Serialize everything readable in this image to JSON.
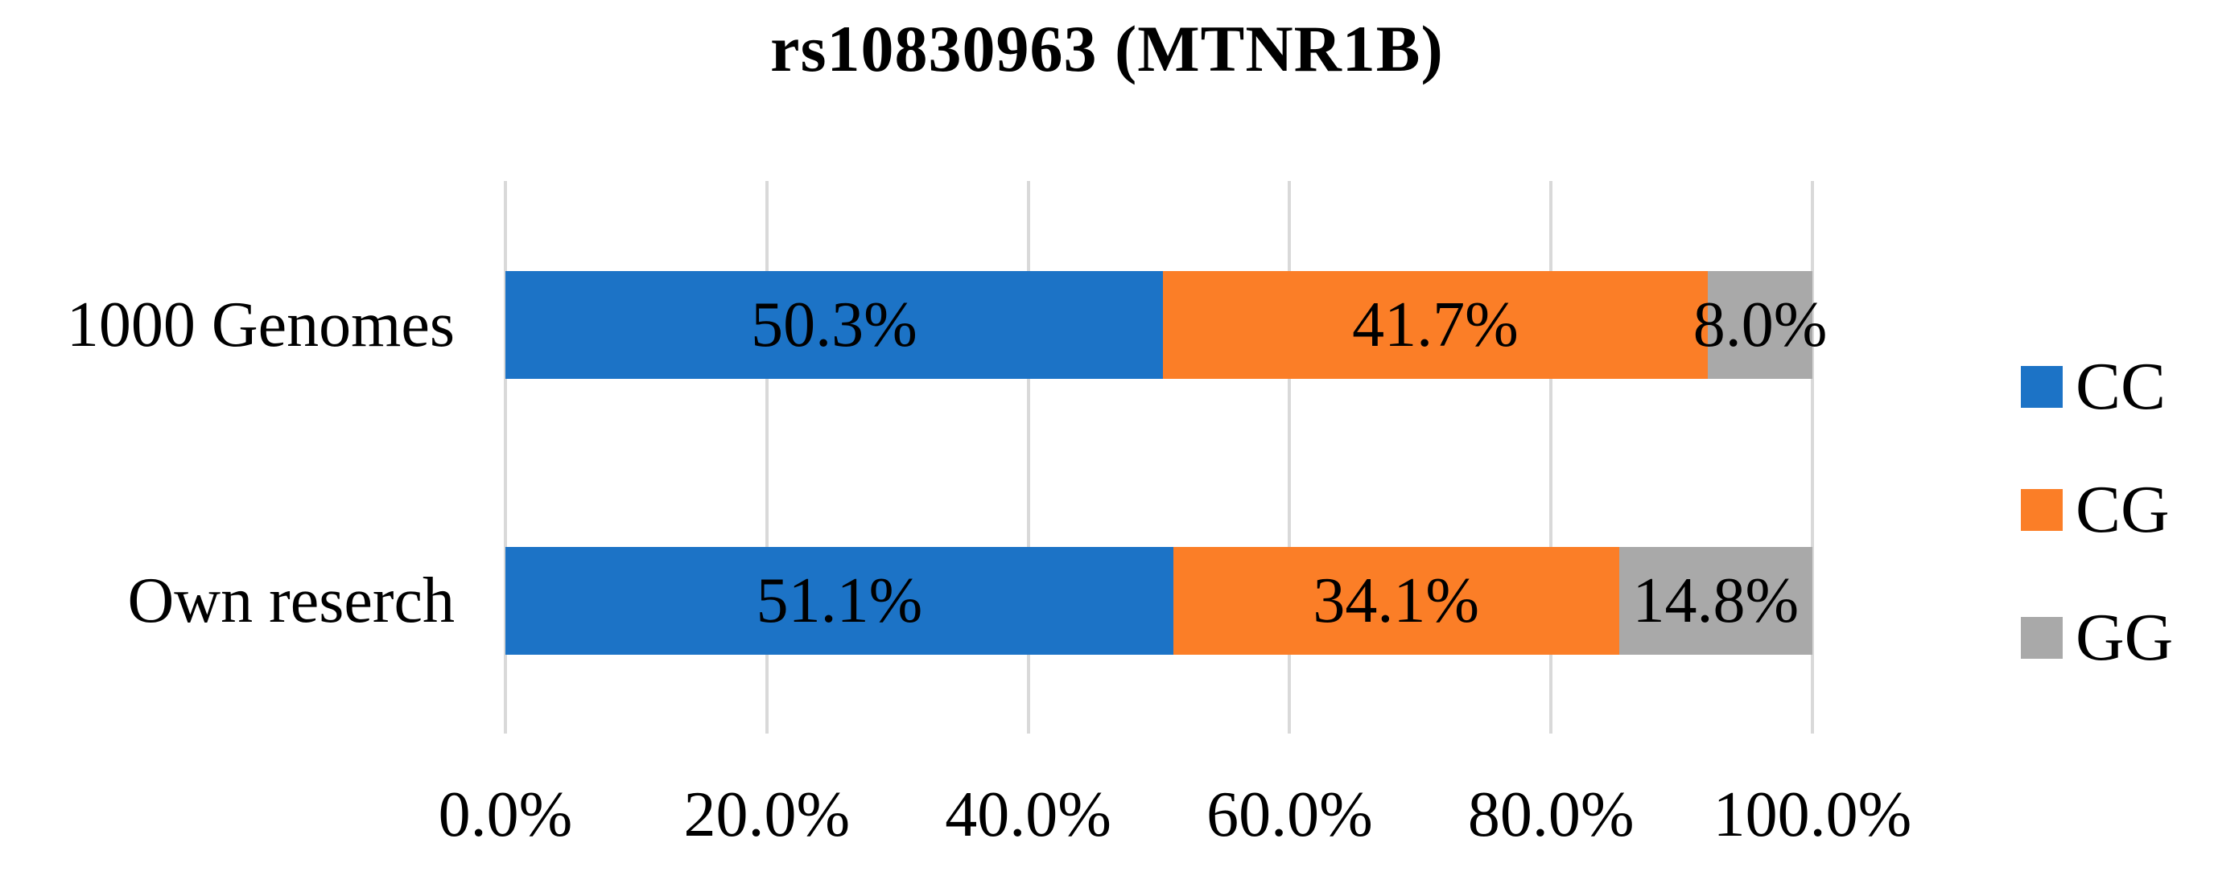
{
  "title": "rs10830963 (MTNR1B)",
  "chart_data": {
    "type": "bar",
    "orientation": "horizontal",
    "stacked": true,
    "title": "rs10830963 (MTNR1B)",
    "categories": [
      "1000 Genomes",
      "Own reserch"
    ],
    "series": [
      {
        "name": "CC",
        "color": "#1C73C6",
        "values": [
          50.3,
          51.1
        ]
      },
      {
        "name": "CG",
        "color": "#FB7E27",
        "values": [
          41.7,
          34.1
        ]
      },
      {
        "name": "GG",
        "color": "#A9A9A9",
        "values": [
          8.0,
          14.8
        ]
      }
    ],
    "data_labels": [
      [
        "50.3%",
        "41.7%",
        "8.0%"
      ],
      [
        "51.1%",
        "34.1%",
        "14.8%"
      ]
    ],
    "x_ticks": [
      "0.0%",
      "20.0%",
      "40.0%",
      "60.0%",
      "80.0%",
      "100.0%"
    ],
    "xlim": [
      0,
      100
    ],
    "xlabel": "",
    "ylabel": "",
    "grid": "vertical",
    "gridline_color": "#D9D9D9",
    "legend_position": "right",
    "legend_entries": [
      "CC",
      "CG",
      "GG"
    ],
    "text_color": "#000000",
    "background_color": "#ffffff"
  }
}
